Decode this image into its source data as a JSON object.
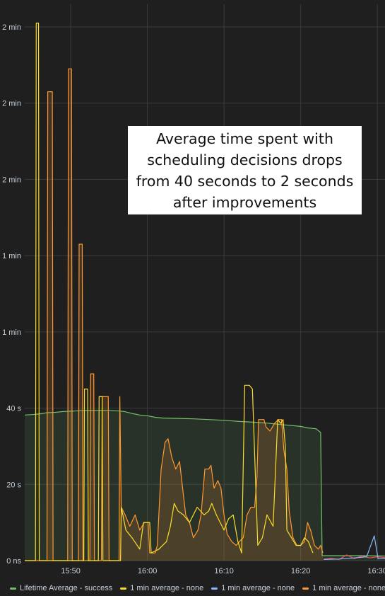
{
  "annotation": "Average time spent with\nscheduling decisions drops\nfrom 40 seconds to 2 seconds\nafter improvements",
  "colors": {
    "background": "#1f1f20",
    "grid": "#3a3b3e",
    "lifetime": "#73bf69",
    "avg_yellow": "#fade2a",
    "avg_blue": "#8ab8ff",
    "avg_orange": "#ff9830",
    "avg_red": "#f2495c"
  },
  "chart_data": {
    "type": "line",
    "x_unit": "minutes",
    "y_unit": "seconds",
    "xlim": [
      "15:44",
      "16:31"
    ],
    "ylim": [
      0,
      140
    ],
    "y_ticks": [
      {
        "value": 0,
        "label": "0 ns"
      },
      {
        "value": 20,
        "label": "20 s"
      },
      {
        "value": 40,
        "label": "40 s"
      },
      {
        "value": 60,
        "label": "1 min"
      },
      {
        "value": 80,
        "label": "1 min"
      },
      {
        "value": 100,
        "label": "2 min"
      },
      {
        "value": 120,
        "label": "2 min"
      },
      {
        "value": 140,
        "label": "2 min"
      }
    ],
    "x_ticks": [
      "15:50",
      "16:00",
      "16:10",
      "16:20",
      "16:30"
    ],
    "legend_position": "bottom",
    "series": [
      {
        "name": "Lifetime Average - success",
        "color": "#73bf69",
        "fill": true,
        "points": [
          [
            "15:44",
            38.2
          ],
          [
            "15:45",
            38.3
          ],
          [
            "15:46",
            38.5
          ],
          [
            "15:47",
            38.8
          ],
          [
            "15:48",
            38.9
          ],
          [
            "15:49",
            39.1
          ],
          [
            "15:50",
            39.2
          ],
          [
            "15:51",
            39.3
          ],
          [
            "15:52",
            39.4
          ],
          [
            "15:53",
            39.4
          ],
          [
            "15:54",
            39.4
          ],
          [
            "15:55",
            39.4
          ],
          [
            "15:56",
            39.3
          ],
          [
            "15:57",
            39.1
          ],
          [
            "15:58",
            38.6
          ],
          [
            "15:59",
            38.2
          ],
          [
            "16:00",
            38.0
          ],
          [
            "16:01",
            37.6
          ],
          [
            "16:02",
            37.4
          ],
          [
            "16:04",
            37.3
          ],
          [
            "16:06",
            37.2
          ],
          [
            "16:08",
            37.0
          ],
          [
            "16:10",
            36.8
          ],
          [
            "16:12",
            36.5
          ],
          [
            "16:14",
            36.3
          ],
          [
            "16:16",
            36.0
          ],
          [
            "16:18",
            35.6
          ],
          [
            "16:20",
            35.2
          ],
          [
            "16:21",
            34.8
          ],
          [
            "16:22",
            34.6
          ],
          [
            "16:22.6",
            33.6
          ],
          [
            "16:22.8",
            1.3
          ],
          [
            "16:25",
            1.3
          ],
          [
            "16:28",
            1.3
          ],
          [
            "16:31",
            1.2
          ]
        ]
      },
      {
        "name": "1 min average - none",
        "color": "#fade2a",
        "fill": false,
        "points": [
          [
            "15:44",
            0
          ],
          [
            "15:45.4",
            0
          ],
          [
            "15:45.5",
            141
          ],
          [
            "15:45.8",
            141
          ],
          [
            "15:45.9",
            0
          ],
          [
            "15:47.9",
            0
          ],
          [
            "15:48",
            0
          ],
          [
            "15:51.7",
            0
          ],
          [
            "15:51.8",
            45
          ],
          [
            "15:52.2",
            45
          ],
          [
            "15:52.3",
            0
          ],
          [
            "15:53.6",
            0
          ],
          [
            "15:53.7",
            43
          ],
          [
            "15:54.1",
            43
          ],
          [
            "15:54.2",
            0
          ],
          [
            "15:56.5",
            0
          ],
          [
            "15:56.6",
            14
          ],
          [
            "15:57.2",
            8
          ],
          [
            "15:58",
            6
          ],
          [
            "15:59",
            3
          ],
          [
            "15:59.5",
            10
          ],
          [
            "16:00.3",
            10
          ],
          [
            "16:00.5",
            2
          ],
          [
            "16:01.5",
            3
          ],
          [
            "16:02.5",
            5
          ],
          [
            "16:03",
            9
          ],
          [
            "16:03.5",
            15
          ],
          [
            "16:04",
            13
          ],
          [
            "16:04.7",
            12
          ],
          [
            "16:05.5",
            10
          ],
          [
            "16:06.5",
            14
          ],
          [
            "16:07.4",
            12
          ],
          [
            "16:08",
            13
          ],
          [
            "16:08.4",
            15
          ],
          [
            "16:09",
            12
          ],
          [
            "16:10",
            8
          ],
          [
            "16:10.6",
            11
          ],
          [
            "16:11.2",
            12
          ],
          [
            "16:11.8",
            5
          ],
          [
            "16:12.3",
            2
          ],
          [
            "16:12.7",
            46
          ],
          [
            "16:13.3",
            46
          ],
          [
            "16:13.7",
            45
          ],
          [
            "16:14.4",
            4
          ],
          [
            "16:15",
            6
          ],
          [
            "16:15.6",
            12
          ],
          [
            "16:16.4",
            9
          ],
          [
            "16:17",
            37
          ],
          [
            "16:17.4",
            36
          ],
          [
            "16:17.7",
            37
          ],
          [
            "16:18",
            30
          ],
          [
            "16:18.2",
            8
          ],
          [
            "16:18.8",
            6
          ],
          [
            "16:19.4",
            4
          ],
          [
            "16:20",
            4
          ],
          [
            "16:20.5",
            6
          ],
          [
            "16:21",
            5
          ],
          [
            "16:21.6",
            2
          ]
        ]
      },
      {
        "name": "1 min average - none",
        "color": "#8ab8ff",
        "fill": false,
        "points": [
          [
            "16:23",
            0.3
          ],
          [
            "16:25",
            0.4
          ],
          [
            "16:27",
            0.7
          ],
          [
            "16:28.6",
            1.0
          ],
          [
            "16:29.6",
            6.5
          ],
          [
            "16:30.1",
            0.5
          ],
          [
            "16:31",
            0.5
          ]
        ]
      },
      {
        "name": "1 min average - none",
        "color": "#ff9830",
        "fill": true,
        "points": [
          [
            "15:44",
            0
          ],
          [
            "15:46.9",
            0
          ],
          [
            "15:47",
            123
          ],
          [
            "15:47.6",
            123
          ],
          [
            "15:47.7",
            0
          ],
          [
            "15:49.6",
            0
          ],
          [
            "15:49.7",
            129
          ],
          [
            "15:50.1",
            129
          ],
          [
            "15:50.2",
            0
          ],
          [
            "15:51",
            0
          ],
          [
            "15:51.1",
            83
          ],
          [
            "15:51.5",
            83
          ],
          [
            "15:51.6",
            0
          ],
          [
            "15:52.5",
            0
          ],
          [
            "15:52.6",
            49
          ],
          [
            "15:53",
            49
          ],
          [
            "15:53.1",
            0
          ],
          [
            "15:54",
            0
          ],
          [
            "15:54.1",
            43
          ],
          [
            "15:54.9",
            43
          ],
          [
            "15:55",
            0
          ],
          [
            "15:56.3",
            0
          ],
          [
            "15:56.4",
            43
          ],
          [
            "15:56.6",
            14
          ],
          [
            "15:57.1",
            12
          ],
          [
            "15:57.7",
            9
          ],
          [
            "15:58.4",
            12
          ],
          [
            "15:59",
            8
          ],
          [
            "15:59.6",
            10
          ],
          [
            "16:00.1",
            10
          ],
          [
            "16:00.3",
            2
          ],
          [
            "16:01",
            2
          ],
          [
            "16:01.3",
            4
          ],
          [
            "16:01.8",
            24
          ],
          [
            "16:02.3",
            31
          ],
          [
            "16:02.7",
            32
          ],
          [
            "16:03.2",
            27
          ],
          [
            "16:03.7",
            24
          ],
          [
            "16:04.2",
            26
          ],
          [
            "16:04.6",
            19
          ],
          [
            "16:05",
            12
          ],
          [
            "16:05.5",
            10
          ],
          [
            "16:06",
            6
          ],
          [
            "16:06.6",
            8
          ],
          [
            "16:07",
            12
          ],
          [
            "16:07.5",
            24
          ],
          [
            "16:08",
            24
          ],
          [
            "16:08.3",
            25
          ],
          [
            "16:08.7",
            19
          ],
          [
            "16:09.2",
            21
          ],
          [
            "16:09.6",
            19
          ],
          [
            "16:10",
            12
          ],
          [
            "16:10.4",
            7
          ],
          [
            "16:11",
            5
          ],
          [
            "16:11.6",
            4
          ],
          [
            "16:12",
            5
          ],
          [
            "16:12.5",
            6
          ],
          [
            "16:13",
            12
          ],
          [
            "16:13.5",
            14
          ],
          [
            "16:14",
            14
          ],
          [
            "16:14.3",
            22
          ],
          [
            "16:14.5",
            37
          ],
          [
            "16:15.2",
            37
          ],
          [
            "16:15.5",
            35
          ],
          [
            "16:16",
            34
          ],
          [
            "16:16.6",
            36
          ],
          [
            "16:17.1",
            37
          ],
          [
            "16:17.5",
            37
          ],
          [
            "16:17.8",
            29
          ],
          [
            "16:18.2",
            24
          ],
          [
            "16:18.5",
            13
          ],
          [
            "16:19",
            6
          ],
          [
            "16:19.5",
            4
          ],
          [
            "16:20",
            4
          ],
          [
            "16:20.5",
            5
          ],
          [
            "16:20.9",
            10
          ],
          [
            "16:21.3",
            8
          ],
          [
            "16:21.8",
            4
          ],
          [
            "16:22.3",
            3
          ],
          [
            "16:22.6",
            4
          ],
          [
            "16:22.9",
            2
          ]
        ]
      },
      {
        "name": "1 min average - none",
        "color": "#f2495c",
        "fill": false,
        "points": [
          [
            "16:23",
            0.4
          ],
          [
            "16:24",
            0.6
          ],
          [
            "16:25",
            0.3
          ],
          [
            "16:26",
            1.5
          ],
          [
            "16:27",
            0.5
          ],
          [
            "16:28",
            1.2
          ],
          [
            "16:29",
            0.7
          ],
          [
            "16:30",
            1.0
          ],
          [
            "16:31",
            0.8
          ]
        ]
      }
    ]
  },
  "legend": [
    {
      "label": "Lifetime Average - success",
      "color": "#73bf69"
    },
    {
      "label": "1 min average - none",
      "color": "#fade2a"
    },
    {
      "label": "1 min average - none",
      "color": "#8ab8ff"
    },
    {
      "label": "1 min average - none",
      "color": "#ff9830"
    }
  ]
}
